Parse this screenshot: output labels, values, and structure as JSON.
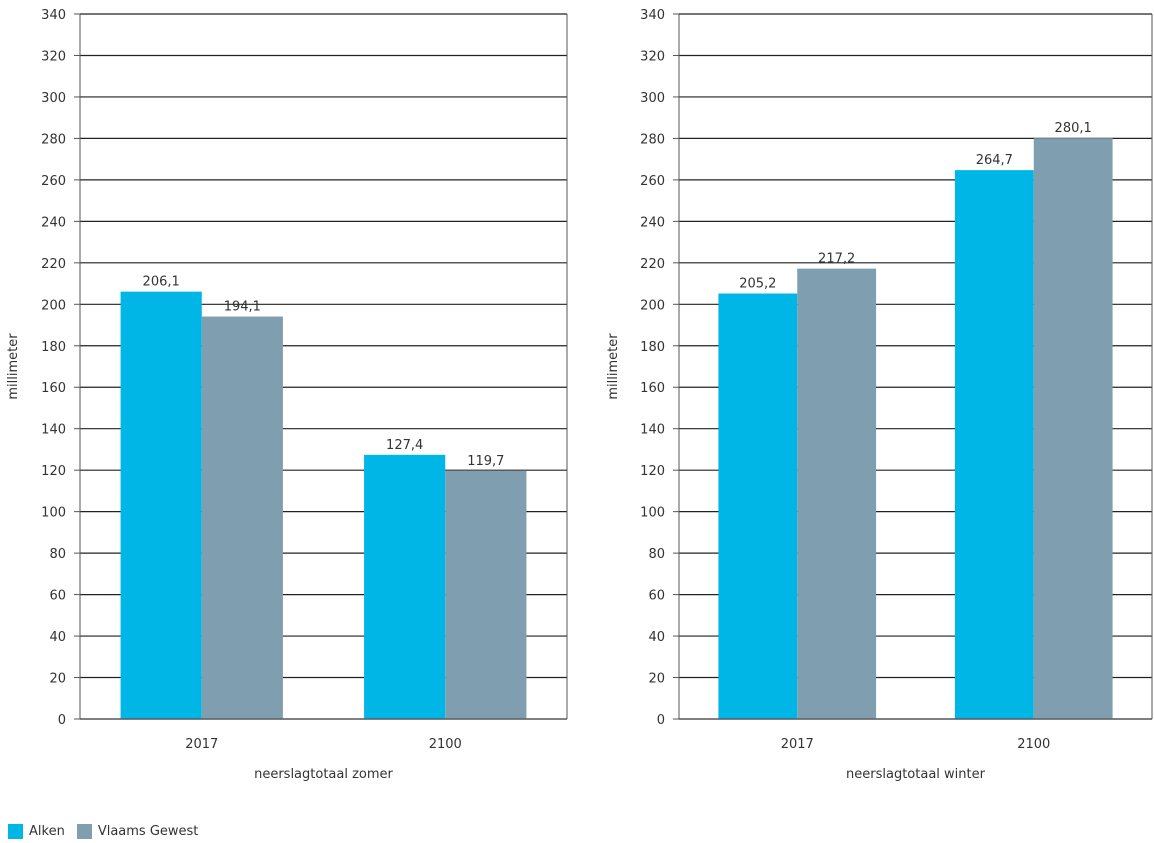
{
  "chart_data": [
    {
      "type": "bar",
      "title": "",
      "xlabel": "neerslagtotaal zomer",
      "ylabel": "millimeter",
      "categories": [
        "2017",
        "2100"
      ],
      "series": [
        {
          "name": "Alken",
          "color": "#00b6e6",
          "values": [
            206.1,
            127.4
          ],
          "labels": [
            "206,1",
            "127,4"
          ]
        },
        {
          "name": "Vlaams Gewest",
          "color": "#7f9fb0",
          "values": [
            194.1,
            119.7
          ],
          "labels": [
            "194,1",
            "119,7"
          ]
        }
      ],
      "ylim": [
        0,
        340
      ],
      "yticks": [
        0,
        20,
        40,
        60,
        80,
        100,
        120,
        140,
        160,
        180,
        200,
        220,
        240,
        260,
        280,
        300,
        320,
        340
      ],
      "grid": true,
      "legend": "bottom-left"
    },
    {
      "type": "bar",
      "title": "",
      "xlabel": "neerslagtotaal winter",
      "ylabel": "millimeter",
      "categories": [
        "2017",
        "2100"
      ],
      "series": [
        {
          "name": "Alken",
          "color": "#00b6e6",
          "values": [
            205.2,
            264.7
          ],
          "labels": [
            "205,2",
            "264,7"
          ]
        },
        {
          "name": "Vlaams Gewest",
          "color": "#7f9fb0",
          "values": [
            217.2,
            280.1
          ],
          "labels": [
            "217,2",
            "280,1"
          ]
        }
      ],
      "ylim": [
        0,
        340
      ],
      "yticks": [
        0,
        20,
        40,
        60,
        80,
        100,
        120,
        140,
        160,
        180,
        200,
        220,
        240,
        260,
        280,
        300,
        320,
        340
      ],
      "grid": true,
      "legend": "bottom-left"
    }
  ],
  "legend": {
    "items": [
      {
        "label": "Alken",
        "color": "#00b6e6"
      },
      {
        "label": "Vlaams Gewest",
        "color": "#7f9fb0"
      }
    ]
  }
}
